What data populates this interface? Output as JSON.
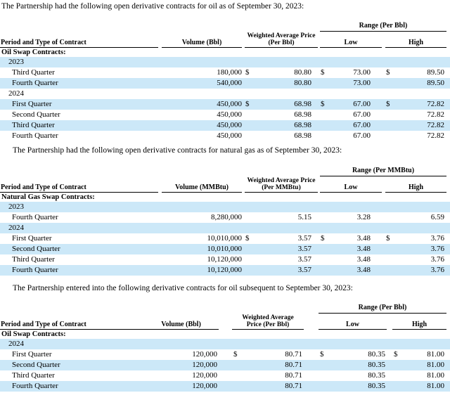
{
  "colors": {
    "row_highlight": "#cce8f8",
    "text": "#000000",
    "background": "#ffffff"
  },
  "sections": [
    {
      "intro": "The Partnership had the following open derivative contracts for oil as of September 30, 2023:",
      "table": {
        "range_label": "Range (Per Bbl)",
        "headers": {
          "period": "Period and Type of Contract",
          "volume": "Volume (Bbl)",
          "price_line1": "Weighted Average Price",
          "price_line2": "(Per Bbl)",
          "low": "Low",
          "high": "High"
        },
        "rows": [
          {
            "type": "group",
            "label": "Oil Swap Contracts:",
            "shaded": false
          },
          {
            "type": "year",
            "label": "2023",
            "shaded": true
          },
          {
            "type": "quarter",
            "label": "Third Quarter",
            "volume": "180,000",
            "d1": "$",
            "price": "80.80",
            "d2": "$",
            "low": "73.00",
            "d3": "$",
            "high": "89.50",
            "shaded": false
          },
          {
            "type": "quarter",
            "label": "Fourth Quarter",
            "volume": "540,000",
            "d1": "",
            "price": "80.80",
            "d2": "",
            "low": "73.00",
            "d3": "",
            "high": "89.50",
            "shaded": true
          },
          {
            "type": "year",
            "label": "2024",
            "shaded": false
          },
          {
            "type": "quarter",
            "label": "First Quarter",
            "volume": "450,000",
            "d1": "$",
            "price": "68.98",
            "d2": "$",
            "low": "67.00",
            "d3": "$",
            "high": "72.82",
            "shaded": true
          },
          {
            "type": "quarter",
            "label": "Second Quarter",
            "volume": "450,000",
            "d1": "",
            "price": "68.98",
            "d2": "",
            "low": "67.00",
            "d3": "",
            "high": "72.82",
            "shaded": false
          },
          {
            "type": "quarter",
            "label": "Third Quarter",
            "volume": "450,000",
            "d1": "",
            "price": "68.98",
            "d2": "",
            "low": "67.00",
            "d3": "",
            "high": "72.82",
            "shaded": true
          },
          {
            "type": "quarter",
            "label": "Fourth Quarter",
            "volume": "450,000",
            "d1": "",
            "price": "68.98",
            "d2": "",
            "low": "67.00",
            "d3": "",
            "high": "72.82",
            "shaded": false
          }
        ]
      }
    },
    {
      "intro": "The Partnership had the following open derivative contracts for natural gas as of September 30, 2023:",
      "table": {
        "range_label": "Range (Per MMBtu)",
        "headers": {
          "period": "Period and Type of Contract",
          "volume": "Volume (MMBtu)",
          "price_line1": "Weighted Average Price",
          "price_line2": "(Per MMBtu)",
          "low": "Low",
          "high": "High"
        },
        "rows": [
          {
            "type": "group",
            "label": "Natural Gas Swap Contracts:",
            "shaded": false
          },
          {
            "type": "year",
            "label": "2023",
            "shaded": true
          },
          {
            "type": "quarter",
            "label": "Fourth Quarter",
            "volume": "8,280,000",
            "d1": "",
            "price": "5.15",
            "d2": "",
            "low": "3.28",
            "d3": "",
            "high": "6.59",
            "shaded": false
          },
          {
            "type": "year",
            "label": "2024",
            "shaded": true
          },
          {
            "type": "quarter",
            "label": "First Quarter",
            "volume": "10,010,000",
            "d1": "$",
            "price": "3.57",
            "d2": "$",
            "low": "3.48",
            "d3": "$",
            "high": "3.76",
            "shaded": false
          },
          {
            "type": "quarter",
            "label": "Second Quarter",
            "volume": "10,010,000",
            "d1": "",
            "price": "3.57",
            "d2": "",
            "low": "3.48",
            "d3": "",
            "high": "3.76",
            "shaded": true
          },
          {
            "type": "quarter",
            "label": "Third Quarter",
            "volume": "10,120,000",
            "d1": "",
            "price": "3.57",
            "d2": "",
            "low": "3.48",
            "d3": "",
            "high": "3.76",
            "shaded": false
          },
          {
            "type": "quarter",
            "label": "Fourth Quarter",
            "volume": "10,120,000",
            "d1": "",
            "price": "3.57",
            "d2": "",
            "low": "3.48",
            "d3": "",
            "high": "3.76",
            "shaded": true
          }
        ]
      }
    },
    {
      "intro": "The Partnership entered into the following derivative contracts for oil subsequent to September 30, 2023:",
      "table": {
        "range_label": "Range (Per Bbl)",
        "headers": {
          "period": "Period and Type of Contract",
          "volume": "Volume (Bbl)",
          "price_line1": "Weighted Average",
          "price_line2": "Price (Per Bbl)",
          "low": "Low",
          "high": "High"
        },
        "rows": [
          {
            "type": "group",
            "label": "Oil Swap Contracts:",
            "shaded": false
          },
          {
            "type": "year",
            "label": "2024",
            "shaded": true
          },
          {
            "type": "quarter",
            "label": "First Quarter",
            "volume": "120,000",
            "d1": "$",
            "price": "80.71",
            "d2": "$",
            "low": "80.35",
            "d3": "$",
            "high": "81.00",
            "shaded": false
          },
          {
            "type": "quarter",
            "label": "Second Quarter",
            "volume": "120,000",
            "d1": "",
            "price": "80.71",
            "d2": "",
            "low": "80.35",
            "d3": "",
            "high": "81.00",
            "shaded": true
          },
          {
            "type": "quarter",
            "label": "Third Quarter",
            "volume": "120,000",
            "d1": "",
            "price": "80.71",
            "d2": "",
            "low": "80.35",
            "d3": "",
            "high": "81.00",
            "shaded": false
          },
          {
            "type": "quarter",
            "label": "Fourth Quarter",
            "volume": "120,000",
            "d1": "",
            "price": "80.71",
            "d2": "",
            "low": "80.35",
            "d3": "",
            "high": "81.00",
            "shaded": true
          }
        ]
      }
    }
  ]
}
